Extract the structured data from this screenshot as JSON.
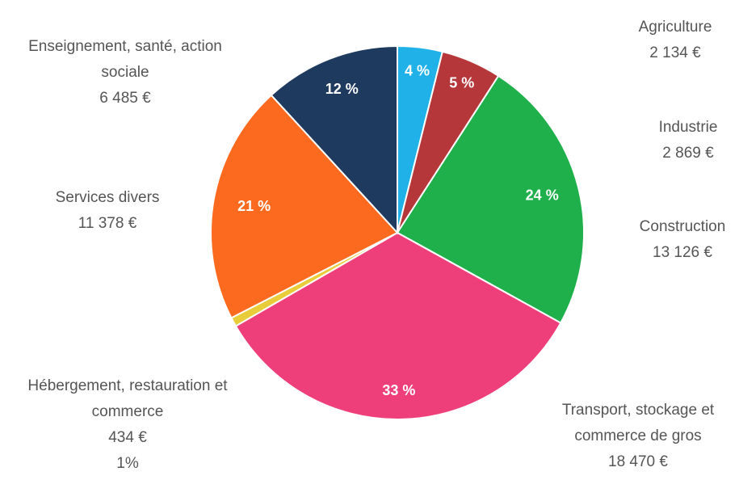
{
  "chart_data": {
    "type": "pie",
    "categories": [
      "Agriculture",
      "Industrie",
      "Construction",
      "Transport, stockage et commerce de gros",
      "Hébergement, restauration et commerce",
      "Services divers",
      "Enseignement, santé, action sociale"
    ],
    "values": [
      2134,
      2869,
      13126,
      18470,
      434,
      11378,
      6485
    ],
    "value_labels": [
      "2 134 €",
      "2 869 €",
      "13 126 €",
      "18 470 €",
      "434 €",
      "11 378 €",
      "6 485 €"
    ],
    "shares": [
      4,
      5,
      24,
      33,
      1,
      21,
      12
    ],
    "share_labels": [
      "4 %",
      "5 %",
      "24 %",
      "33 %",
      "1%",
      "21 %",
      "12 %"
    ],
    "colors": [
      "#1fb1e8",
      "#b5373a",
      "#1fb04c",
      "#ef3f7b",
      "#e8cc3a",
      "#fb6a1f",
      "#1f3a5f"
    ]
  }
}
